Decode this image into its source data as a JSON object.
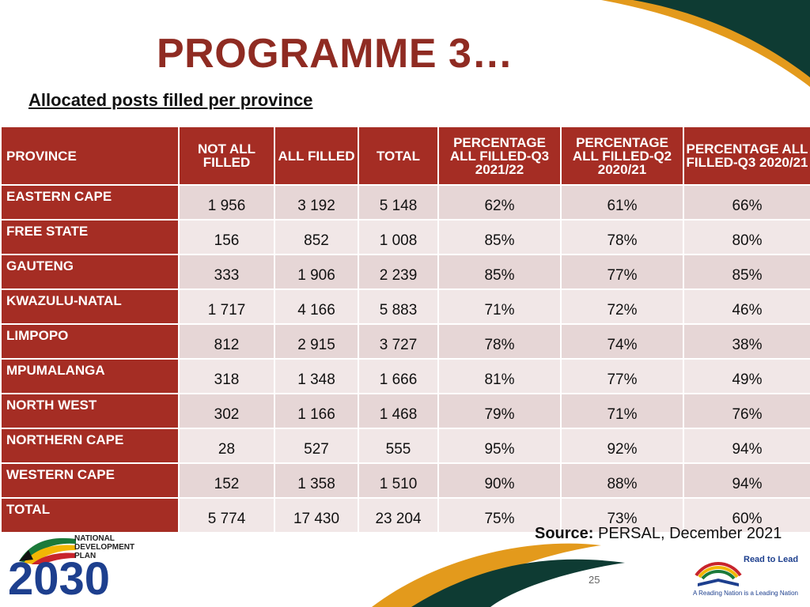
{
  "slide": {
    "title": "PROGRAMME 3…",
    "subtitle": "Allocated posts filled per province",
    "page_number": "25",
    "source_label": "Source:",
    "source_text": "PERSAL, December 2021"
  },
  "colors": {
    "header_red": "#a52d24",
    "title_red": "#8f2b22",
    "row_shade_dark": "#e6d6d6",
    "row_shade_light": "#f1e7e7",
    "deco_green": "#0e3b33",
    "deco_orange": "#e39a1c"
  },
  "table": {
    "headers": [
      "PROVINCE",
      "NOT ALL FILLED",
      "ALL FILLED",
      "TOTAL",
      "PERCENTAGE ALL FILLED-Q3 2021/22",
      "PERCENTAGE ALL FILLED-Q2 2020/21",
      "PERCENTAGE ALL FILLED-Q3 2020/21"
    ],
    "rows": [
      [
        "EASTERN CAPE",
        "1 956",
        "3 192",
        "5 148",
        "62%",
        "61%",
        "66%"
      ],
      [
        "FREE STATE",
        "156",
        "852",
        "1 008",
        "85%",
        "78%",
        "80%"
      ],
      [
        "GAUTENG",
        "333",
        "1 906",
        "2 239",
        "85%",
        "77%",
        "85%"
      ],
      [
        "KWAZULU-NATAL",
        "1 717",
        "4 166",
        "5 883",
        "71%",
        "72%",
        "46%"
      ],
      [
        "LIMPOPO",
        "812",
        "2 915",
        "3 727",
        "78%",
        "74%",
        "38%"
      ],
      [
        "MPUMALANGA",
        "318",
        "1 348",
        "1 666",
        "81%",
        "77%",
        "49%"
      ],
      [
        "NORTH WEST",
        "302",
        "1 166",
        "1 468",
        "79%",
        "71%",
        "76%"
      ],
      [
        "NORTHERN CAPE",
        "28",
        "527",
        "555",
        "95%",
        "92%",
        "94%"
      ],
      [
        "WESTERN CAPE",
        "152",
        "1 358",
        "1 510",
        "90%",
        "88%",
        "94%"
      ],
      [
        "TOTAL",
        "5 774",
        "17 430",
        "23 204",
        "75%",
        "73%",
        "60%"
      ]
    ]
  },
  "logos": {
    "ndp": {
      "text": "NATIONAL\nDEVELOPMENT\nPLAN",
      "year": "2030"
    },
    "read_to_lead": {
      "title": "Read to Lead",
      "tagline": "A Reading Nation is a Leading Nation"
    }
  }
}
